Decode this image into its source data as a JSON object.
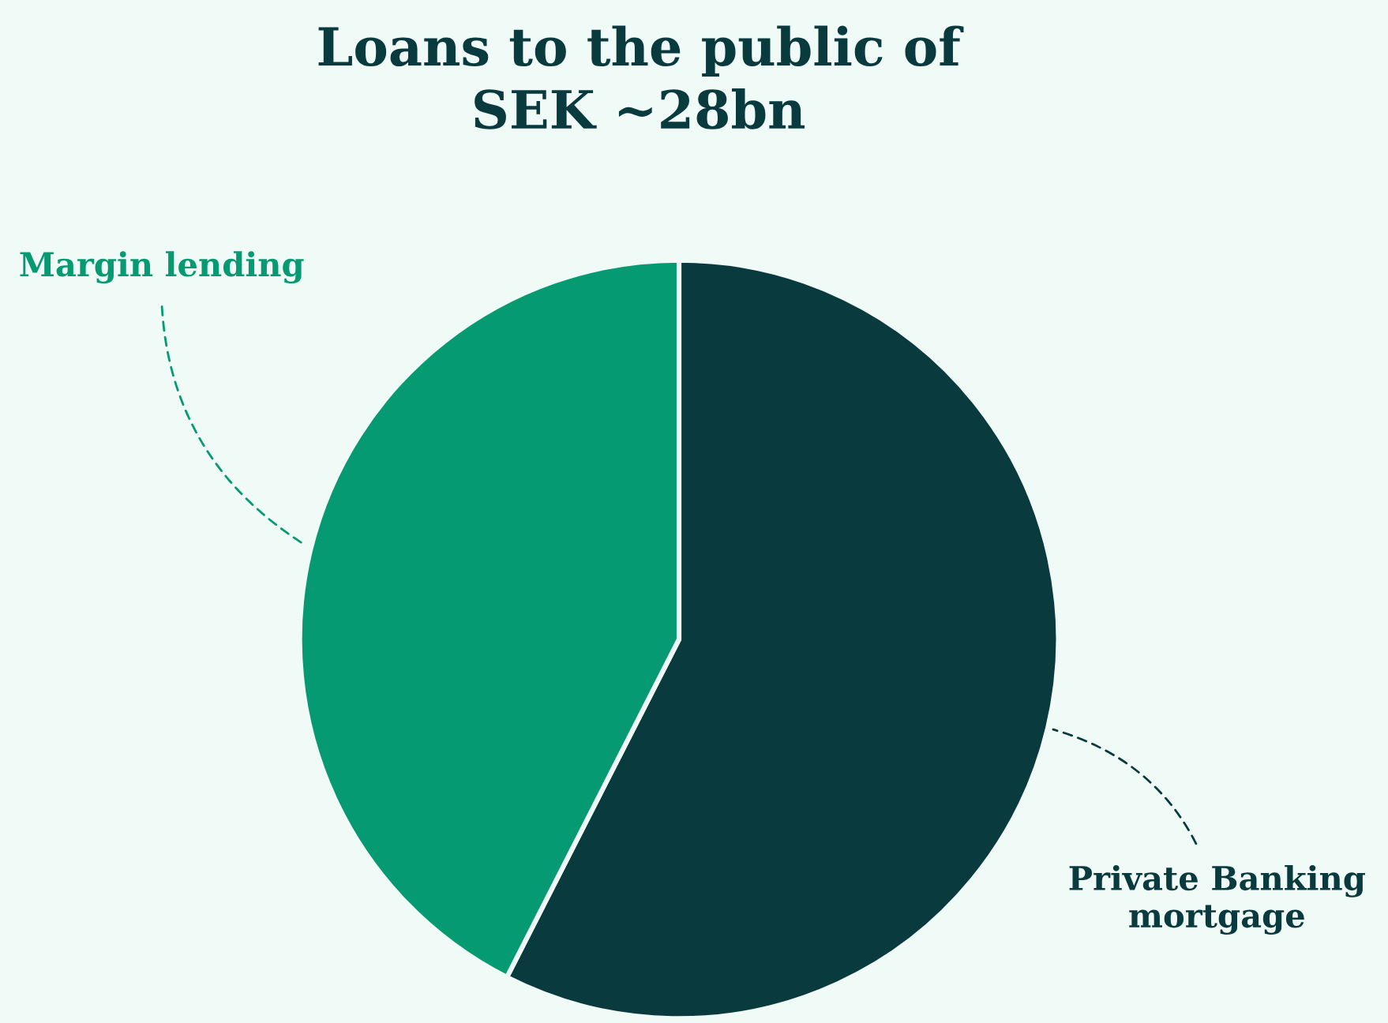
{
  "chart_data": {
    "type": "pie",
    "title": "Loans to the public of\nSEK ~28bn",
    "categories": [
      "Private Banking\nmortgage",
      "Margin lending"
    ],
    "values": [
      57.5,
      42.5
    ],
    "colors": [
      "#083a3e",
      "#069a72"
    ]
  }
}
